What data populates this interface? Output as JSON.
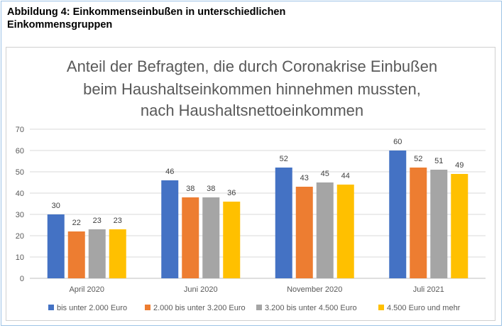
{
  "caption": {
    "line1": "Abbildung 4: Einkommenseinbußen in unterschiedlichen",
    "line2": "Einkommensgruppen"
  },
  "chart_data": {
    "type": "bar",
    "title": [
      "Anteil der Befragten, die durch Coronakrise Einbußen",
      "beim Haushaltseinkommen hinnehmen mussten,",
      "nach Haushaltsnettoeinkommen"
    ],
    "categories": [
      "April 2020",
      "Juni 2020",
      "November 2020",
      "Juli 2021"
    ],
    "series": [
      {
        "name": "bis unter 2.000 Euro",
        "color": "#4472c4",
        "values": [
          30,
          46,
          52,
          60
        ]
      },
      {
        "name": "2.000 bis unter 3.200 Euro",
        "color": "#ed7d31",
        "values": [
          22,
          38,
          43,
          52
        ]
      },
      {
        "name": "3.200 bis unter 4.500 Euro",
        "color": "#a5a5a5",
        "values": [
          23,
          38,
          45,
          51
        ]
      },
      {
        "name": "4.500 Euro und mehr",
        "color": "#ffc000",
        "values": [
          23,
          36,
          44,
          49
        ]
      }
    ],
    "ylim": [
      0,
      70
    ],
    "yticks": [
      0,
      10,
      20,
      30,
      40,
      50,
      60,
      70
    ],
    "grid": true,
    "legend": "bottom",
    "xlabel": "",
    "ylabel": ""
  }
}
